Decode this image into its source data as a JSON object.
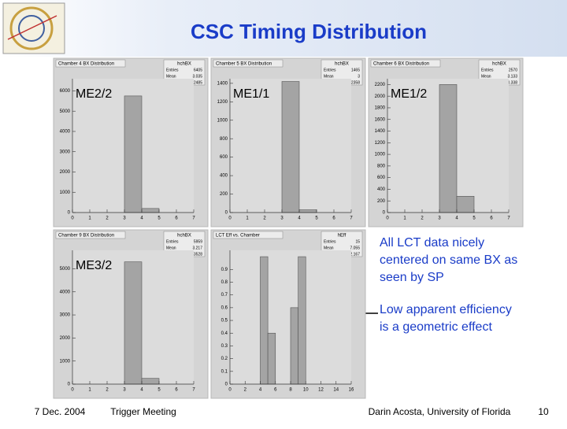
{
  "title": "CSC Timing Distribution",
  "bullets": [
    "All LCT data nicely centered on same BX as seen by SP",
    "Low apparent efficiency is a geometric effect"
  ],
  "footer": {
    "date": "7 Dec. 2004",
    "meeting": "Trigger Meeting",
    "author": "Darin Acosta, University of Florida",
    "page": "10"
  },
  "chart_data": [
    {
      "type": "histogram",
      "title": "Chamber 4 BX Distribution",
      "hist_name": "hchBX",
      "annotation": "ME2/2",
      "stats": [
        {
          "label": "Entries",
          "value": "6405"
        },
        {
          "label": "Mean",
          "value": "3.035"
        },
        {
          "label": "RMS",
          "value": "0.2485"
        }
      ],
      "bins": [
        0,
        1,
        2,
        3,
        4,
        5,
        6,
        7
      ],
      "values": [
        0,
        0,
        0,
        5750,
        200,
        0,
        0
      ],
      "color": "#a4a4a4",
      "xlim": [
        0,
        7
      ],
      "xticks": [
        0,
        1,
        2,
        3,
        4,
        5,
        6,
        7
      ],
      "ylim": [
        0,
        6600
      ],
      "yticks": [
        0,
        1000,
        2000,
        3000,
        4000,
        5000,
        6000
      ]
    },
    {
      "type": "histogram",
      "title": "Chamber 5 BX Distribution",
      "hist_name": "hchBX",
      "annotation": "ME1/1",
      "stats": [
        {
          "label": "Entries",
          "value": "1465"
        },
        {
          "label": "Mean",
          "value": "3"
        },
        {
          "label": "RMS",
          "value": "0.2358"
        }
      ],
      "bins": [
        0,
        1,
        2,
        3,
        4,
        5,
        6,
        7
      ],
      "values": [
        0,
        0,
        0,
        1420,
        30,
        0,
        0
      ],
      "color": "#a4a4a4",
      "xlim": [
        0,
        7
      ],
      "xticks": [
        0,
        1,
        2,
        3,
        4,
        5,
        6,
        7
      ],
      "ylim": [
        0,
        1450
      ],
      "yticks": [
        0,
        200,
        400,
        600,
        800,
        1000,
        1200,
        1400
      ]
    },
    {
      "type": "histogram",
      "title": "Chamber 6 BX Distribution",
      "hist_name": "hchBX",
      "annotation": "ME1/2",
      "stats": [
        {
          "label": "Entries",
          "value": "2570"
        },
        {
          "label": "Mean",
          "value": "3.133"
        },
        {
          "label": "RMS",
          "value": "0.338"
        }
      ],
      "bins": [
        0,
        1,
        2,
        3,
        4,
        5,
        6,
        7
      ],
      "values": [
        0,
        0,
        0,
        2200,
        280,
        0,
        0
      ],
      "color": "#a4a4a4",
      "xlim": [
        0,
        7
      ],
      "xticks": [
        0,
        1,
        2,
        3,
        4,
        5,
        6,
        7
      ],
      "ylim": [
        0,
        2300
      ],
      "yticks": [
        0,
        200,
        400,
        600,
        800,
        1000,
        1200,
        1400,
        1600,
        1800,
        2000,
        2200
      ]
    },
    {
      "type": "histogram",
      "title": "Chamber 9 BX Distribution",
      "hist_name": "hchBX",
      "annotation": "ME3/2",
      "stats": [
        {
          "label": "Entries",
          "value": "5959"
        },
        {
          "label": "Mean",
          "value": "3.217"
        },
        {
          "label": "RMS",
          "value": "0.3528"
        }
      ],
      "bins": [
        0,
        1,
        2,
        3,
        4,
        5,
        6,
        7
      ],
      "values": [
        0,
        0,
        0,
        5300,
        250,
        0,
        0
      ],
      "color": "#a4a4a4",
      "xlim": [
        0,
        7
      ],
      "xticks": [
        0,
        1,
        2,
        3,
        4,
        5,
        6,
        7
      ],
      "ylim": [
        0,
        5800
      ],
      "yticks": [
        0,
        1000,
        2000,
        3000,
        4000,
        5000
      ]
    },
    {
      "type": "histogram",
      "title": "LCT Eff vs. Chamber",
      "hist_name": "hEff",
      "stats": [
        {
          "label": "Entries",
          "value": "15"
        },
        {
          "label": "Mean",
          "value": "7.055"
        },
        {
          "label": "RMS",
          "value": "2.167"
        }
      ],
      "bins": [
        0,
        1,
        2,
        3,
        4,
        5,
        6,
        7,
        8,
        9,
        10,
        11,
        12,
        13,
        14,
        15,
        16
      ],
      "values": [
        0,
        0,
        0,
        0,
        1,
        0.4,
        0,
        0,
        0.6,
        1,
        0,
        0,
        0,
        0,
        0,
        0
      ],
      "color": "#a4a4a4",
      "xlim": [
        0,
        16
      ],
      "xticks": [
        0,
        2,
        4,
        6,
        8,
        10,
        12,
        14,
        16
      ],
      "ylim": [
        0,
        1.05
      ],
      "yticks": [
        0,
        0.1,
        0.2,
        0.3,
        0.4,
        0.5,
        0.6,
        0.7,
        0.8,
        0.9
      ]
    }
  ]
}
